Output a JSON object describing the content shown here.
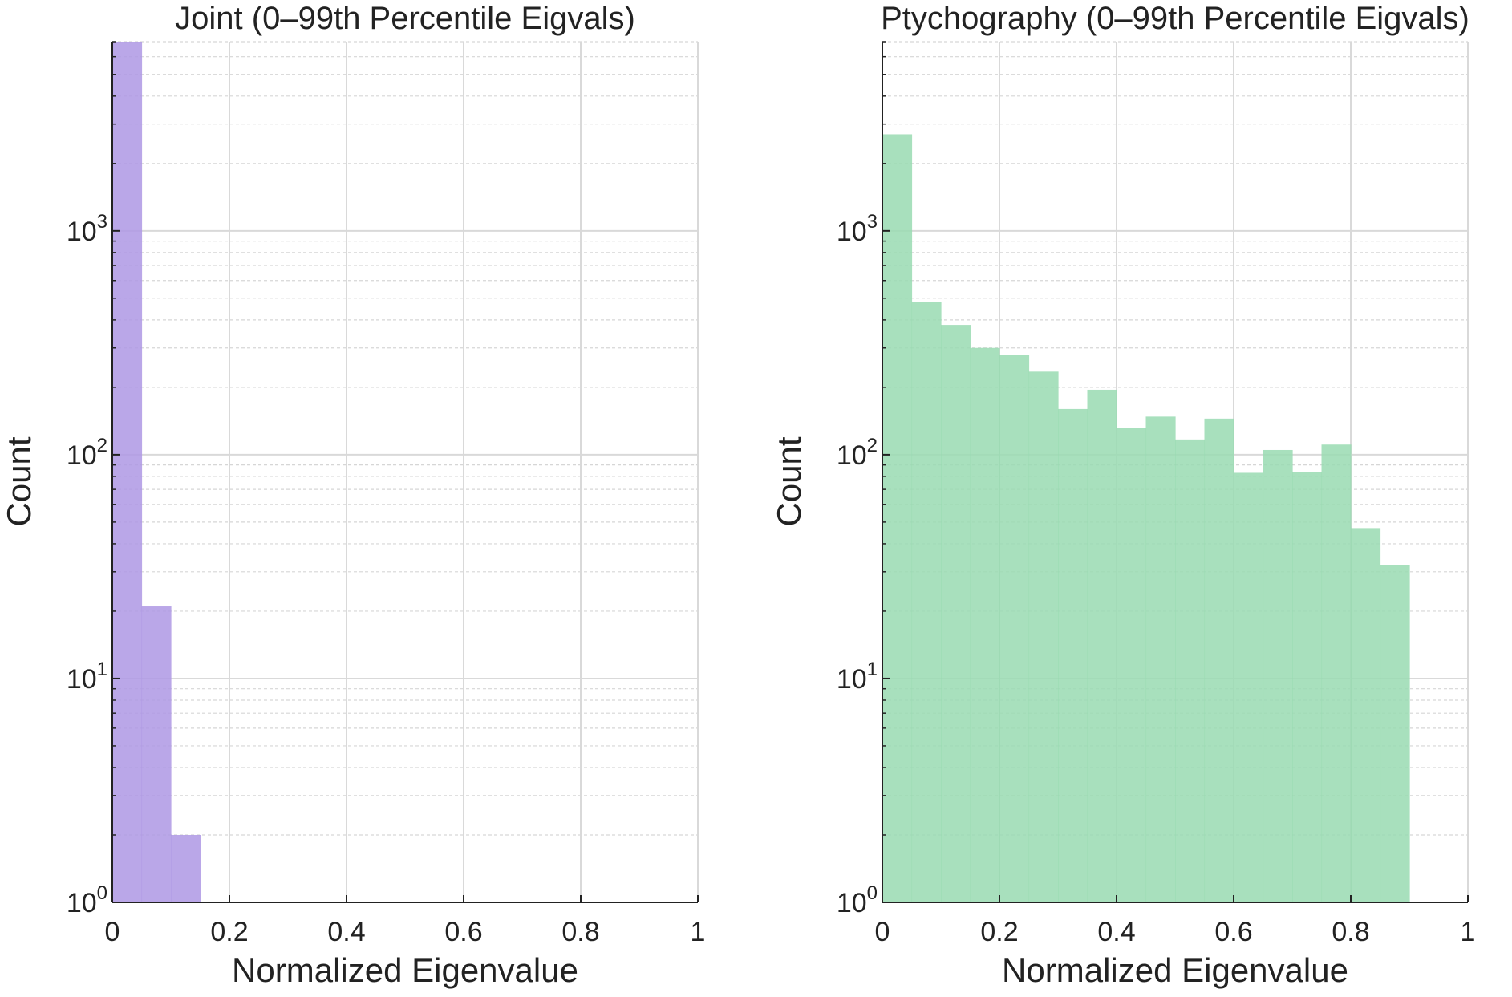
{
  "chart_data": [
    {
      "type": "bar",
      "title": "Joint (0–99th Percentile Eigvals)",
      "xlabel": "Normalized Eigenvalue",
      "ylabel": "Count",
      "xlim": [
        0,
        1
      ],
      "ylim": [
        1,
        7000
      ],
      "yscale": "log",
      "grid": true,
      "x_ticks": [
        {
          "value": 0,
          "label": "0"
        },
        {
          "value": 0.2,
          "label": "0.2"
        },
        {
          "value": 0.4,
          "label": "0.4"
        },
        {
          "value": 0.6,
          "label": "0.6"
        },
        {
          "value": 0.8,
          "label": "0.8"
        },
        {
          "value": 1,
          "label": "1"
        }
      ],
      "y_ticks": [
        {
          "value": 1,
          "base": "10",
          "exp": "0"
        },
        {
          "value": 10,
          "base": "10",
          "exp": "1"
        },
        {
          "value": 100,
          "base": "10",
          "exp": "2"
        },
        {
          "value": 1000,
          "base": "10",
          "exp": "3"
        }
      ],
      "color": "#ae98e4",
      "bins": [
        {
          "x0": 0.0,
          "x1": 0.05,
          "count": 7000
        },
        {
          "x0": 0.05,
          "x1": 0.1,
          "count": 21
        },
        {
          "x0": 0.1,
          "x1": 0.15,
          "count": 2
        }
      ]
    },
    {
      "type": "bar",
      "title": "Ptychography (0–99th Percentile Eigvals)",
      "xlabel": "Normalized Eigenvalue",
      "ylabel": "Count",
      "xlim": [
        0,
        1
      ],
      "ylim": [
        1,
        7000
      ],
      "yscale": "log",
      "grid": true,
      "x_ticks": [
        {
          "value": 0,
          "label": "0"
        },
        {
          "value": 0.2,
          "label": "0.2"
        },
        {
          "value": 0.4,
          "label": "0.4"
        },
        {
          "value": 0.6,
          "label": "0.6"
        },
        {
          "value": 0.8,
          "label": "0.8"
        },
        {
          "value": 1,
          "label": "1"
        }
      ],
      "y_ticks": [
        {
          "value": 1,
          "base": "10",
          "exp": "0"
        },
        {
          "value": 10,
          "base": "10",
          "exp": "1"
        },
        {
          "value": 100,
          "base": "10",
          "exp": "2"
        },
        {
          "value": 1000,
          "base": "10",
          "exp": "3"
        }
      ],
      "color": "#99dab2",
      "bins": [
        {
          "x0": 0.0,
          "x1": 0.05,
          "count": 2700
        },
        {
          "x0": 0.05,
          "x1": 0.1,
          "count": 480
        },
        {
          "x0": 0.1,
          "x1": 0.15,
          "count": 380
        },
        {
          "x0": 0.15,
          "x1": 0.2,
          "count": 300
        },
        {
          "x0": 0.2,
          "x1": 0.25,
          "count": 280
        },
        {
          "x0": 0.25,
          "x1": 0.3,
          "count": 235
        },
        {
          "x0": 0.3,
          "x1": 0.35,
          "count": 160
        },
        {
          "x0": 0.35,
          "x1": 0.4,
          "count": 195
        },
        {
          "x0": 0.4,
          "x1": 0.45,
          "count": 132
        },
        {
          "x0": 0.45,
          "x1": 0.5,
          "count": 148
        },
        {
          "x0": 0.5,
          "x1": 0.55,
          "count": 117
        },
        {
          "x0": 0.55,
          "x1": 0.6,
          "count": 145
        },
        {
          "x0": 0.6,
          "x1": 0.65,
          "count": 83
        },
        {
          "x0": 0.65,
          "x1": 0.7,
          "count": 105
        },
        {
          "x0": 0.7,
          "x1": 0.75,
          "count": 84
        },
        {
          "x0": 0.75,
          "x1": 0.8,
          "count": 111
        },
        {
          "x0": 0.8,
          "x1": 0.85,
          "count": 47
        },
        {
          "x0": 0.85,
          "x1": 0.9,
          "count": 32
        }
      ]
    }
  ]
}
